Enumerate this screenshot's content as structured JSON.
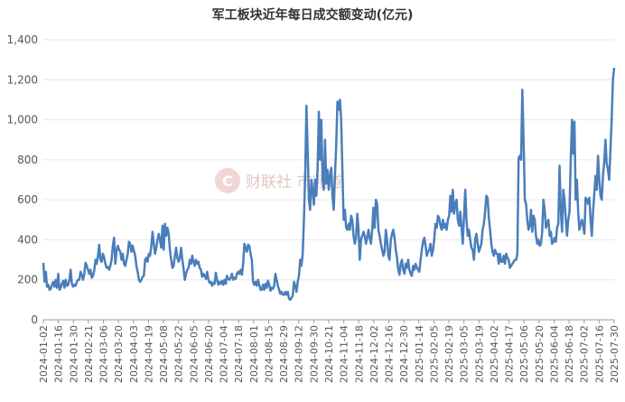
{
  "chart_data": {
    "type": "line",
    "title": "军工板块近年每日成交额变动(亿元)",
    "xlabel": "",
    "ylabel": "",
    "ylim": [
      0,
      1400
    ],
    "yticks": [
      "0",
      "200",
      "400",
      "600",
      "800",
      "1,000",
      "1,200",
      "1,400"
    ],
    "grid": true,
    "legend": "none",
    "colors": {
      "line": "#4a7ebb"
    },
    "watermark": {
      "text": "财联社 市频道",
      "logo_letter": "C",
      "color": "#e4c6c6"
    },
    "xticks": [
      "2024-01-02",
      "2024-01-16",
      "2024-01-30",
      "2024-02-21",
      "2024-03-06",
      "2024-03-20",
      "2024-04-03",
      "2024-04-19",
      "2024-05-08",
      "2024-05-22",
      "2024-06-05",
      "2024-06-20",
      "2024-07-04",
      "2024-07-18",
      "2024-08-01",
      "2024-08-15",
      "2024-08-29",
      "2024-09-12",
      "2024-09-30",
      "2024-10-21",
      "2024-11-04",
      "2024-11-18",
      "2024-12-02",
      "2024-12-16",
      "2024-12-30",
      "2025-01-14",
      "2025-02-05",
      "2025-02-19",
      "2025-03-05",
      "2025-03-19",
      "2025-04-02",
      "2025-04-17",
      "2025-05-06",
      "2025-05-20",
      "2025-06-04",
      "2025-06-18",
      "2025-07-02",
      "2025-07-16",
      "2025-07-30"
    ],
    "series": [
      {
        "name": "",
        "values": [
          285,
          190,
          240,
          165,
          175,
          150,
          155,
          175,
          190,
          165,
          200,
          160,
          230,
          150,
          160,
          180,
          195,
          160,
          200,
          170,
          175,
          200,
          250,
          180,
          165,
          175,
          170,
          190,
          200,
          200,
          240,
          225,
          200,
          230,
          285,
          270,
          250,
          230,
          250,
          210,
          220,
          245,
          300,
          280,
          320,
          375,
          300,
          290,
          330,
          310,
          280,
          260,
          265,
          250,
          270,
          300,
          370,
          410,
          280,
          345,
          370,
          350,
          340,
          300,
          330,
          280,
          270,
          300,
          330,
          390,
          380,
          340,
          370,
          345,
          320,
          270,
          240,
          200,
          190,
          200,
          215,
          220,
          300,
          310,
          290,
          330,
          320,
          370,
          440,
          380,
          330,
          360,
          400,
          430,
          400,
          360,
          470,
          350,
          480,
          420,
          460,
          430,
          350,
          300,
          260,
          270,
          320,
          360,
          310,
          290,
          310,
          360,
          300,
          255,
          200,
          230,
          250,
          260,
          300,
          280,
          320,
          290,
          270,
          300,
          280,
          290,
          260,
          250,
          215,
          230,
          220,
          205,
          240,
          200,
          185,
          190,
          170,
          185,
          180,
          235,
          200,
          175,
          190,
          180,
          195,
          175,
          200,
          180,
          220,
          205,
          200,
          210,
          230,
          200,
          210,
          205,
          230,
          240,
          230,
          250,
          225,
          280,
          380,
          360,
          340,
          375,
          370,
          330,
          300,
          190,
          175,
          190,
          170,
          200,
          175,
          150,
          150,
          175,
          150,
          180,
          160,
          195,
          175,
          145,
          160,
          155,
          170,
          230,
          200,
          170,
          150,
          130,
          140,
          125,
          125,
          140,
          125,
          140,
          105,
          100,
          110,
          120,
          190,
          170,
          140,
          190,
          220,
          300,
          270,
          330,
          500,
          720,
          1070,
          850,
          600,
          550,
          700,
          650,
          575,
          700,
          620,
          750,
          1040,
          800,
          1000,
          700,
          650,
          900,
          680,
          750,
          650,
          720,
          760,
          620,
          550,
          720,
          870,
          1090,
          1050,
          1100,
          1000,
          750,
          500,
          550,
          460,
          450,
          480,
          450,
          520,
          500,
          420,
          380,
          410,
          530,
          450,
          300,
          400,
          420,
          440,
          420,
          380,
          410,
          450,
          410,
          380,
          450,
          560,
          460,
          600,
          580,
          450,
          420,
          380,
          350,
          320,
          340,
          450,
          400,
          320,
          300,
          400,
          430,
          450,
          410,
          350,
          310,
          250,
          225,
          280,
          300,
          250,
          230,
          280,
          260,
          300,
          250,
          230,
          220,
          270,
          250,
          280,
          260,
          250,
          240,
          300,
          350,
          390,
          410,
          370,
          320,
          340,
          350,
          380,
          320,
          350,
          400,
          480,
          460,
          520,
          510,
          470,
          450,
          500,
          460,
          480,
          450,
          500,
          520,
          620,
          540,
          650,
          530,
          580,
          600,
          500,
          470,
          540,
          460,
          380,
          520,
          650,
          500,
          420,
          450,
          400,
          360,
          350,
          300,
          400,
          430,
          380,
          340,
          360,
          380,
          450,
          480,
          540,
          620,
          610,
          510,
          450,
          380,
          340,
          320,
          350,
          330,
          330,
          280,
          330,
          290,
          290,
          320,
          280,
          330,
          310,
          300,
          260,
          270,
          280,
          290,
          300,
          300,
          330,
          810,
          820,
          800,
          1150,
          900,
          600,
          580,
          500,
          450,
          470,
          550,
          440,
          520,
          500,
          420,
          380,
          400,
          370,
          380,
          440,
          600,
          550,
          460,
          480,
          500,
          420,
          440,
          380,
          390,
          410,
          390,
          460,
          480,
          770,
          550,
          440,
          650,
          600,
          500,
          420,
          500,
          540,
          800,
          1000,
          830,
          990,
          600,
          700,
          540,
          450,
          480,
          500,
          470,
          430,
          610,
          600,
          580,
          610,
          500,
          420,
          540,
          630,
          720,
          650,
          820,
          700,
          620,
          600,
          720,
          790,
          900,
          780,
          750,
          700,
          850,
          1000,
          1200,
          1260
        ]
      }
    ]
  }
}
